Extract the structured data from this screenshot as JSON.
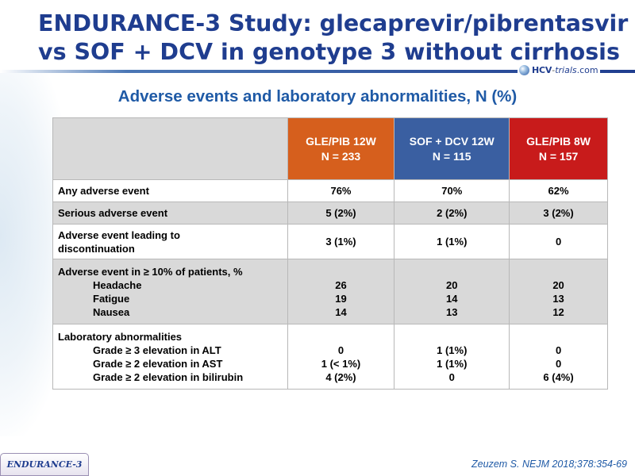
{
  "title": {
    "line1": "ENDURANCE-3 Study: glecaprevir/pibrentasvir",
    "line2": "vs SOF + DCV in genotype 3 without cirrhosis"
  },
  "logo": {
    "prefix": "HCV",
    "dash": "-",
    "middle": "trials",
    "suffix": ".com"
  },
  "subtitle": "Adverse events and laboratory abnormalities, N (%)",
  "table": {
    "headers": [
      {
        "line1": "GLE/PIB 12W",
        "line2": "N = 233",
        "color": "#d65f1d"
      },
      {
        "line1": "SOF + DCV 12W",
        "line2": "N = 115",
        "color": "#3a5fa1"
      },
      {
        "line1": "GLE/PIB 8W",
        "line2": "N = 157",
        "color": "#c81b1b"
      }
    ],
    "rows": {
      "any_ae": {
        "label": "Any adverse event",
        "values": [
          "76%",
          "70%",
          "62%"
        ]
      },
      "serious_ae": {
        "label": "Serious adverse event",
        "values": [
          "5 (2%)",
          "2 (2%)",
          "3 (2%)"
        ]
      },
      "ae_discontinuation": {
        "label_line1": "Adverse event leading to",
        "label_line2": "discontinuation",
        "values": [
          "3 (1%)",
          "1 (1%)",
          "0"
        ]
      },
      "ae_10pct": {
        "label": "Adverse event in ≥ 10% of patients, %",
        "items": [
          {
            "label": "Headache",
            "values": [
              "26",
              "20",
              "20"
            ]
          },
          {
            "label": "Fatigue",
            "values": [
              "19",
              "14",
              "13"
            ]
          },
          {
            "label": "Nausea",
            "values": [
              "14",
              "13",
              "12"
            ]
          }
        ]
      },
      "lab": {
        "label": "Laboratory abnormalities",
        "items": [
          {
            "label": "Grade ≥ 3 elevation in ALT",
            "values": [
              "0",
              "1 (1%)",
              "0"
            ]
          },
          {
            "label": "Grade ≥ 2 elevation in AST",
            "values": [
              "1 (< 1%)",
              "1 (1%)",
              "0"
            ]
          },
          {
            "label": "Grade ≥ 2 elevation in bilirubin",
            "values": [
              "4 (2%)",
              "0",
              "6 (4%)"
            ]
          }
        ]
      }
    }
  },
  "footer": {
    "tab_label": "ENDURANCE-3",
    "citation": "Zeuzem S. NEJM 2018;378:354-69"
  }
}
